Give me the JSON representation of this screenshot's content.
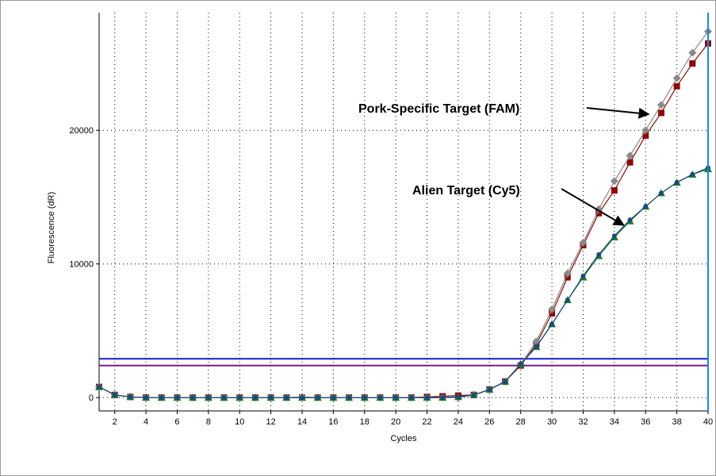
{
  "chart_data": {
    "type": "line",
    "title": "",
    "xlabel": "Cycles",
    "ylabel": "Fluorescence (dR)",
    "xlim": [
      1,
      40
    ],
    "ylim": [
      -1000,
      28800
    ],
    "x_ticks": [
      2,
      4,
      6,
      8,
      10,
      12,
      14,
      16,
      18,
      20,
      22,
      24,
      26,
      28,
      30,
      32,
      34,
      36,
      38,
      40
    ],
    "y_ticks": [
      0,
      10000,
      20000
    ],
    "grid": true,
    "x": [
      1,
      2,
      3,
      4,
      5,
      6,
      7,
      8,
      9,
      10,
      11,
      12,
      13,
      14,
      15,
      16,
      17,
      18,
      19,
      20,
      21,
      22,
      23,
      24,
      25,
      26,
      27,
      28,
      29,
      30,
      31,
      32,
      33,
      34,
      35,
      36,
      37,
      38,
      39,
      40
    ],
    "series": [
      {
        "color": "#8b0a0a",
        "marker": "square",
        "values": [
          800,
          200,
          50,
          0,
          0,
          0,
          0,
          0,
          0,
          0,
          0,
          0,
          0,
          0,
          0,
          0,
          0,
          0,
          0,
          0,
          0,
          50,
          100,
          150,
          200,
          600,
          1200,
          2400,
          4000,
          6300,
          9000,
          11400,
          13800,
          15500,
          17600,
          19600,
          21300,
          23300,
          25000,
          26500
        ]
      },
      {
        "color": "#8a8a8a",
        "marker": "diamond",
        "values": [
          800,
          200,
          50,
          0,
          0,
          0,
          0,
          0,
          0,
          0,
          0,
          0,
          0,
          50,
          0,
          0,
          0,
          0,
          0,
          0,
          0,
          0,
          0,
          0,
          200,
          600,
          1200,
          2500,
          4200,
          6600,
          9300,
          11600,
          14100,
          16200,
          18100,
          20000,
          21900,
          23900,
          25800,
          27400
        ]
      },
      {
        "color": "#1c7a2e",
        "marker": "triangle",
        "values": [
          800,
          200,
          50,
          0,
          0,
          0,
          0,
          0,
          0,
          0,
          0,
          0,
          0,
          0,
          0,
          0,
          0,
          0,
          0,
          0,
          0,
          0,
          0,
          50,
          200,
          600,
          1200,
          2500,
          3800,
          5500,
          7300,
          9000,
          10600,
          12000,
          13200,
          14300,
          15300,
          16100,
          16700,
          17100
        ]
      },
      {
        "color": "#1c4a7a",
        "marker": "circle",
        "values": [
          800,
          200,
          50,
          0,
          0,
          0,
          0,
          0,
          0,
          0,
          0,
          0,
          0,
          0,
          0,
          0,
          0,
          0,
          0,
          0,
          0,
          0,
          0,
          50,
          200,
          600,
          1200,
          2500,
          3800,
          5500,
          7300,
          9100,
          10700,
          12100,
          13300,
          14300,
          15300,
          16100,
          16700,
          17200
        ]
      }
    ],
    "threshold_lines": [
      {
        "value": 2900,
        "color": "#1a1ad0"
      },
      {
        "value": 2400,
        "color": "#7a1a8a"
      }
    ],
    "cursor_line": {
      "x": 40,
      "color": "#1a8ae0"
    },
    "annotations": [
      {
        "text": "Pork-Specific Target (FAM)",
        "at_x": 36.2,
        "at_y": 21200
      },
      {
        "text": "Alien Target (Cy5)",
        "at_x": 34.6,
        "at_y": 12900
      }
    ]
  }
}
